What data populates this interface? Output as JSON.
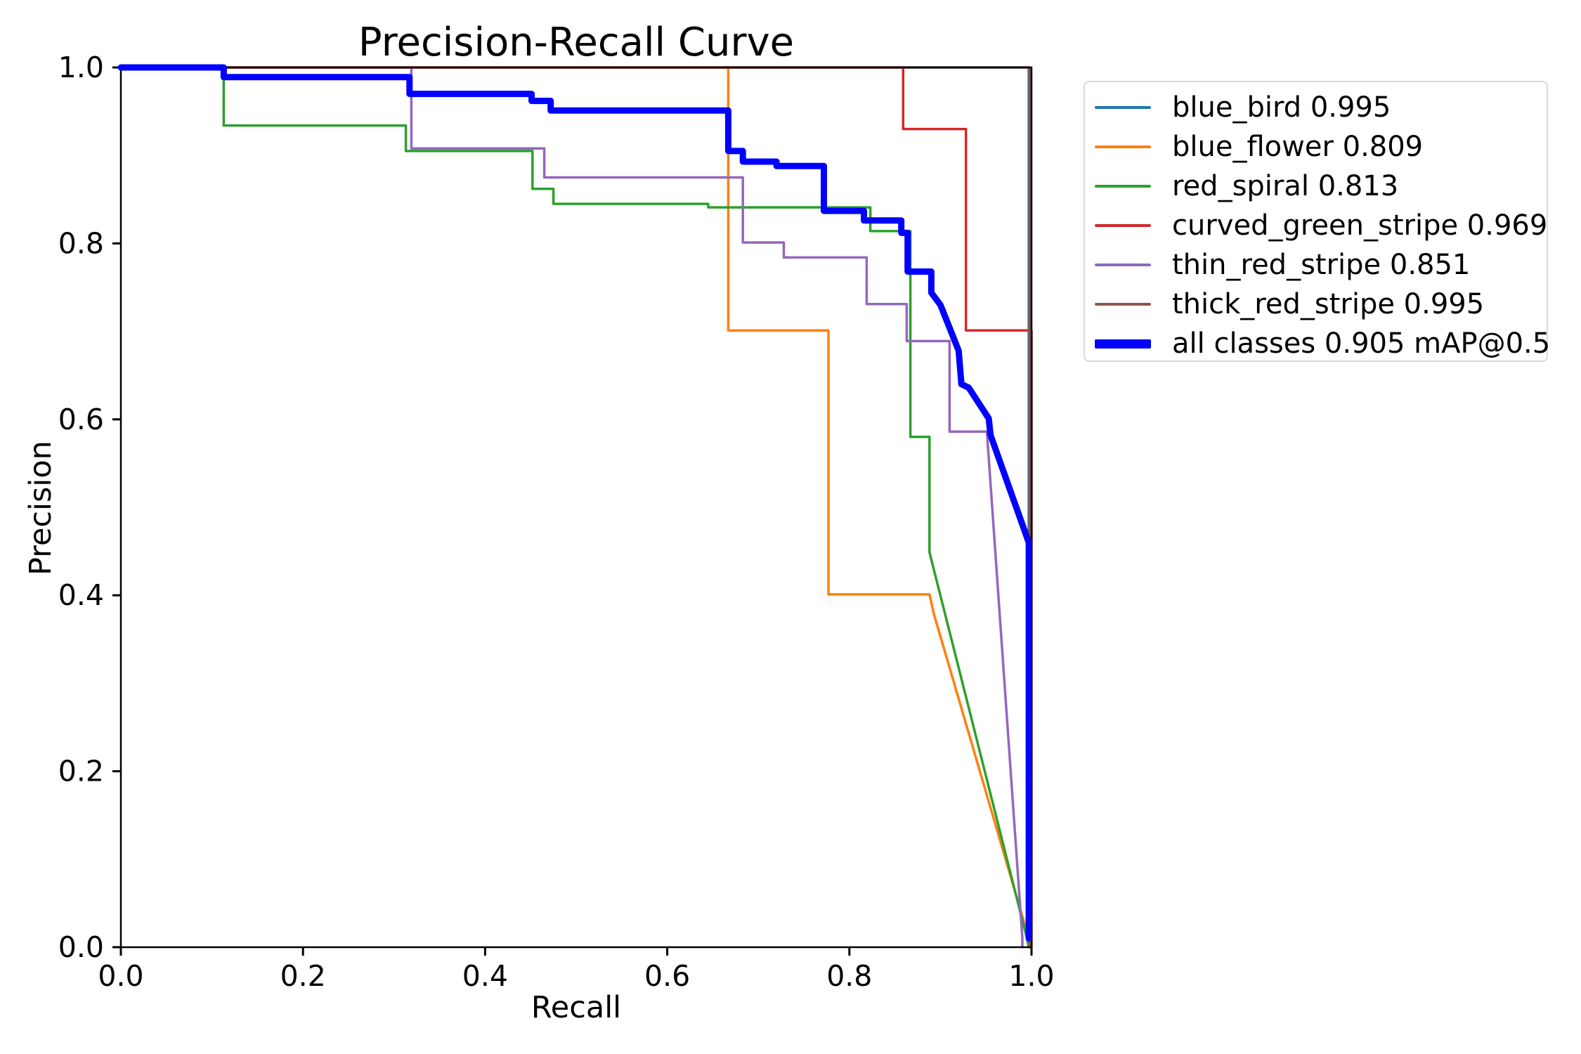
{
  "chart": {
    "kind": "precision-recall-plot"
  },
  "chart_data": {
    "type": "line",
    "title": "Precision-Recall Curve",
    "xlabel": "Recall",
    "ylabel": "Precision",
    "xlim": [
      0.0,
      1.0
    ],
    "ylim": [
      0.0,
      1.0
    ],
    "x_ticks": [
      "0.0",
      "0.2",
      "0.4",
      "0.6",
      "0.8",
      "1.0"
    ],
    "y_ticks": [
      "0.0",
      "0.2",
      "0.4",
      "0.6",
      "0.8",
      "1.0"
    ],
    "grid": false,
    "legend_position": "upper right, outside axes",
    "axis_color": "#000000",
    "series": [
      {
        "name": "blue_bird",
        "ap": 0.995,
        "legend_label": "blue_bird 0.995",
        "color": "#1f77b4",
        "line_width": 3.5,
        "points": [
          [
            0.0,
            1.0
          ],
          [
            0.997,
            1.0
          ],
          [
            0.997,
            0.0
          ]
        ]
      },
      {
        "name": "blue_flower",
        "ap": 0.809,
        "legend_label": "blue_flower 0.809",
        "color": "#ff7f0e",
        "line_width": 3.5,
        "points": [
          [
            0.0,
            1.0
          ],
          [
            0.667,
            1.0
          ],
          [
            0.667,
            0.701
          ],
          [
            0.777,
            0.701
          ],
          [
            0.777,
            0.401
          ],
          [
            0.888,
            0.401
          ],
          [
            0.893,
            0.378
          ],
          [
            0.997,
            0.01
          ],
          [
            0.999,
            0.0
          ]
        ]
      },
      {
        "name": "red_spiral",
        "ap": 0.813,
        "legend_label": "red_spiral 0.813",
        "color": "#2ca02c",
        "line_width": 3.5,
        "points": [
          [
            0.0,
            1.0
          ],
          [
            0.113,
            1.0
          ],
          [
            0.113,
            0.934
          ],
          [
            0.313,
            0.934
          ],
          [
            0.313,
            0.905
          ],
          [
            0.452,
            0.905
          ],
          [
            0.452,
            0.862
          ],
          [
            0.475,
            0.862
          ],
          [
            0.475,
            0.845
          ],
          [
            0.645,
            0.845
          ],
          [
            0.645,
            0.841
          ],
          [
            0.823,
            0.841
          ],
          [
            0.823,
            0.814
          ],
          [
            0.867,
            0.814
          ],
          [
            0.867,
            0.58
          ],
          [
            0.888,
            0.58
          ],
          [
            0.888,
            0.449
          ],
          [
            0.995,
            0.01
          ],
          [
            0.997,
            0.0
          ]
        ]
      },
      {
        "name": "curved_green_stripe",
        "ap": 0.969,
        "legend_label": "curved_green_stripe 0.969",
        "color": "#d62728",
        "line_width": 3.5,
        "points": [
          [
            0.0,
            1.0
          ],
          [
            0.859,
            1.0
          ],
          [
            0.859,
            0.93
          ],
          [
            0.928,
            0.93
          ],
          [
            0.928,
            0.701
          ],
          [
            1.0,
            0.701
          ],
          [
            1.0,
            0.0
          ]
        ]
      },
      {
        "name": "thin_red_stripe",
        "ap": 0.851,
        "legend_label": "thin_red_stripe 0.851",
        "color": "#9467bd",
        "line_width": 3.5,
        "points": [
          [
            0.0,
            1.0
          ],
          [
            0.319,
            1.0
          ],
          [
            0.319,
            0.908
          ],
          [
            0.465,
            0.908
          ],
          [
            0.465,
            0.875
          ],
          [
            0.683,
            0.875
          ],
          [
            0.683,
            0.801
          ],
          [
            0.728,
            0.801
          ],
          [
            0.728,
            0.784
          ],
          [
            0.819,
            0.784
          ],
          [
            0.819,
            0.731
          ],
          [
            0.863,
            0.731
          ],
          [
            0.863,
            0.689
          ],
          [
            0.91,
            0.689
          ],
          [
            0.91,
            0.586
          ],
          [
            0.951,
            0.586
          ],
          [
            0.99,
            0.01
          ],
          [
            0.99,
            0.0
          ]
        ]
      },
      {
        "name": "thick_red_stripe",
        "ap": 0.995,
        "legend_label": "thick_red_stripe 0.995",
        "color": "#8c564b",
        "line_width": 3.5,
        "points": [
          [
            0.0,
            1.0
          ],
          [
            0.998,
            1.0
          ],
          [
            0.998,
            0.0
          ]
        ]
      },
      {
        "name": "all_classes",
        "ap": 0.905,
        "legend_label": "all classes 0.905 mAP@0.5",
        "color": "#0000ff",
        "line_width": 9,
        "points": [
          [
            0.0,
            1.0
          ],
          [
            0.113,
            1.0
          ],
          [
            0.113,
            0.989
          ],
          [
            0.317,
            0.989
          ],
          [
            0.317,
            0.97
          ],
          [
            0.451,
            0.97
          ],
          [
            0.451,
            0.962
          ],
          [
            0.472,
            0.962
          ],
          [
            0.472,
            0.951
          ],
          [
            0.667,
            0.951
          ],
          [
            0.667,
            0.905
          ],
          [
            0.683,
            0.905
          ],
          [
            0.683,
            0.893
          ],
          [
            0.72,
            0.893
          ],
          [
            0.72,
            0.888
          ],
          [
            0.772,
            0.888
          ],
          [
            0.772,
            0.837
          ],
          [
            0.816,
            0.837
          ],
          [
            0.816,
            0.826
          ],
          [
            0.857,
            0.826
          ],
          [
            0.857,
            0.812
          ],
          [
            0.864,
            0.812
          ],
          [
            0.864,
            0.768
          ],
          [
            0.89,
            0.768
          ],
          [
            0.89,
            0.744
          ],
          [
            0.9,
            0.73
          ],
          [
            0.91,
            0.704
          ],
          [
            0.92,
            0.678
          ],
          [
            0.923,
            0.64
          ],
          [
            0.931,
            0.636
          ],
          [
            0.953,
            0.601
          ],
          [
            0.955,
            0.582
          ],
          [
            0.997,
            0.46
          ],
          [
            0.997,
            0.01
          ]
        ]
      }
    ]
  }
}
